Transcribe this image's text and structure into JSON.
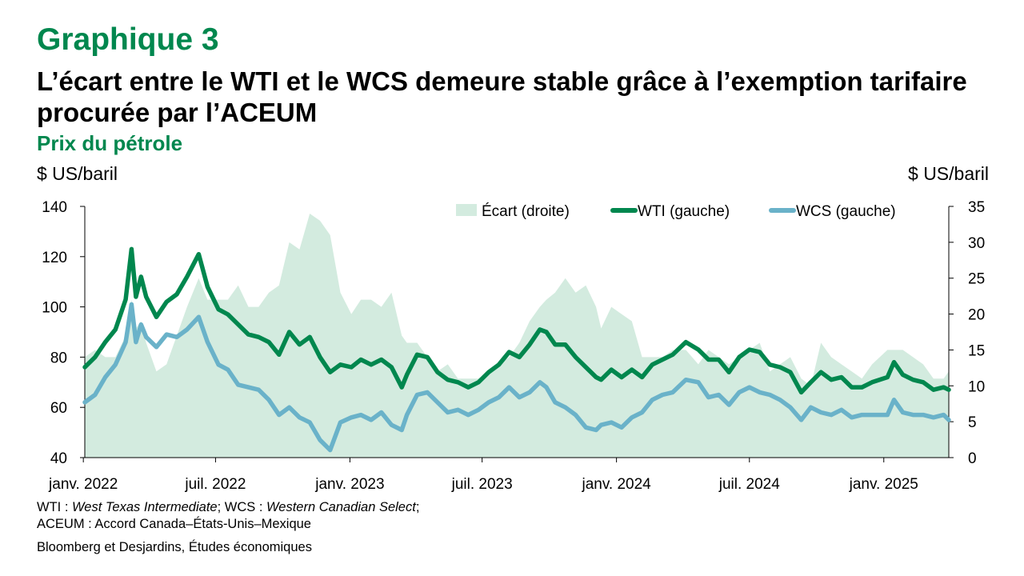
{
  "header": {
    "kicker": "Graphique 3",
    "title": "L’écart entre le WTI et le WCS demeure stable grâce à l’exemption tarifaire procurée par l’ACEUM",
    "subtitle": "Prix du pétrole"
  },
  "axes": {
    "left_unit": "$ US/baril",
    "right_unit": "$ US/baril"
  },
  "footer": {
    "note_wti_prefix": "WTI : ",
    "note_wti_name": "West Texas Intermediate",
    "note_wcs_prefix": "; WCS : ",
    "note_wcs_name": "Western Canadian Select",
    "note_end": ";",
    "note_aceum": "ACEUM : Accord Canada–États-Unis–Mexique",
    "source": "Bloomberg et Desjardins, Études économiques"
  },
  "colors": {
    "wti": "#00874e",
    "wcs": "#6ab2c9",
    "ecart": "#d3ebdf"
  },
  "chart_data": {
    "type": "line",
    "title": "Prix du pétrole",
    "ylabel_left": "$ US/baril",
    "ylabel_right": "$ US/baril",
    "ylim_left": [
      40,
      140
    ],
    "yticks_left": [
      40,
      60,
      80,
      100,
      120,
      140
    ],
    "ylim_right": [
      0,
      35
    ],
    "yticks_right": [
      0,
      5,
      10,
      15,
      20,
      25,
      30,
      35
    ],
    "xlim": [
      "2022-01-03",
      "2025-03-31"
    ],
    "xticks": [
      {
        "date": "2022-01-01",
        "label": "janv. 2022"
      },
      {
        "date": "2022-07-01",
        "label": "juil. 2022"
      },
      {
        "date": "2023-01-01",
        "label": "janv. 2023"
      },
      {
        "date": "2023-07-01",
        "label": "juil. 2023"
      },
      {
        "date": "2024-01-01",
        "label": "janv. 2024"
      },
      {
        "date": "2024-07-01",
        "label": "juil. 2024"
      },
      {
        "date": "2025-01-01",
        "label": "janv. 2025"
      }
    ],
    "legend": [
      "Écart (droite)",
      "WTI (gauche)",
      "WCS (gauche)"
    ],
    "legend_position": "top-right",
    "dates": [
      "2022-01-03",
      "2022-01-17",
      "2022-01-31",
      "2022-02-14",
      "2022-02-28",
      "2022-03-08",
      "2022-03-14",
      "2022-03-21",
      "2022-03-28",
      "2022-04-11",
      "2022-04-25",
      "2022-05-09",
      "2022-05-23",
      "2022-06-08",
      "2022-06-20",
      "2022-07-05",
      "2022-07-18",
      "2022-08-01",
      "2022-08-15",
      "2022-08-29",
      "2022-09-12",
      "2022-09-26",
      "2022-10-10",
      "2022-10-24",
      "2022-11-07",
      "2022-11-21",
      "2022-12-05",
      "2022-12-19",
      "2023-01-03",
      "2023-01-16",
      "2023-01-30",
      "2023-02-13",
      "2023-02-27",
      "2023-03-13",
      "2023-03-20",
      "2023-04-03",
      "2023-04-17",
      "2023-05-01",
      "2023-05-15",
      "2023-05-29",
      "2023-06-12",
      "2023-06-26",
      "2023-07-10",
      "2023-07-24",
      "2023-08-07",
      "2023-08-21",
      "2023-09-04",
      "2023-09-18",
      "2023-09-27",
      "2023-10-09",
      "2023-10-23",
      "2023-11-06",
      "2023-11-20",
      "2023-12-04",
      "2023-12-11",
      "2023-12-25",
      "2024-01-08",
      "2024-01-22",
      "2024-02-05",
      "2024-02-19",
      "2024-03-04",
      "2024-03-18",
      "2024-04-05",
      "2024-04-22",
      "2024-05-06",
      "2024-05-20",
      "2024-06-03",
      "2024-06-17",
      "2024-07-01",
      "2024-07-15",
      "2024-07-29",
      "2024-08-12",
      "2024-08-26",
      "2024-09-10",
      "2024-09-23",
      "2024-10-07",
      "2024-10-21",
      "2024-11-04",
      "2024-11-18",
      "2024-12-02",
      "2024-12-16",
      "2025-01-06",
      "2025-01-15",
      "2025-01-27",
      "2025-02-10",
      "2025-02-24",
      "2025-03-10",
      "2025-03-24",
      "2025-03-31"
    ],
    "series": [
      {
        "name": "WTI (gauche)",
        "axis": "left",
        "values": [
          76,
          80,
          86,
          91,
          103,
          123,
          104,
          112,
          104,
          96,
          102,
          105,
          112,
          121,
          108,
          99,
          97,
          93,
          89,
          88,
          86,
          81,
          90,
          85,
          88,
          80,
          74,
          77,
          76,
          79,
          77,
          79,
          76,
          68,
          73,
          81,
          80,
          74,
          71,
          70,
          68,
          70,
          74,
          77,
          82,
          80,
          85,
          91,
          90,
          85,
          85,
          80,
          76,
          72,
          71,
          75,
          72,
          75,
          72,
          77,
          79,
          81,
          86,
          83,
          79,
          79,
          74,
          80,
          83,
          82,
          77,
          76,
          74,
          66,
          70,
          74,
          71,
          72,
          68,
          68,
          70,
          72,
          78,
          73,
          71,
          70,
          67,
          68,
          67
        ]
      },
      {
        "name": "WCS (gauche)",
        "axis": "left",
        "values": [
          62,
          65,
          72,
          77,
          86,
          101,
          86,
          93,
          88,
          84,
          89,
          88,
          91,
          96,
          86,
          77,
          75,
          69,
          68,
          67,
          63,
          57,
          60,
          56,
          54,
          47,
          43,
          54,
          56,
          57,
          55,
          58,
          53,
          51,
          57,
          65,
          66,
          62,
          58,
          59,
          57,
          59,
          62,
          64,
          68,
          64,
          66,
          70,
          68,
          62,
          60,
          57,
          52,
          51,
          53,
          54,
          52,
          56,
          58,
          63,
          65,
          66,
          71,
          70,
          64,
          65,
          61,
          66,
          68,
          66,
          65,
          63,
          60,
          55,
          60,
          58,
          57,
          59,
          56,
          57,
          57,
          57,
          63,
          58,
          57,
          57,
          56,
          57,
          55
        ]
      },
      {
        "name": "Écart (droite)",
        "axis": "right",
        "values": [
          14,
          15,
          14,
          14,
          17,
          22,
          18,
          19,
          16,
          12,
          13,
          17,
          21,
          25,
          22,
          22,
          22,
          24,
          21,
          21,
          23,
          24,
          30,
          29,
          34,
          33,
          31,
          23,
          20,
          22,
          22,
          21,
          23,
          17,
          16,
          16,
          14,
          12,
          13,
          11,
          11,
          11,
          12,
          13,
          14,
          16,
          19,
          21,
          22,
          23,
          25,
          23,
          24,
          21,
          18,
          21,
          20,
          19,
          14,
          14,
          14,
          15,
          15,
          13,
          15,
          14,
          13,
          14,
          15,
          16,
          12,
          13,
          14,
          11,
          10,
          16,
          14,
          13,
          12,
          11,
          13,
          15,
          15,
          15,
          14,
          13,
          11,
          11,
          12
        ]
      }
    ]
  }
}
